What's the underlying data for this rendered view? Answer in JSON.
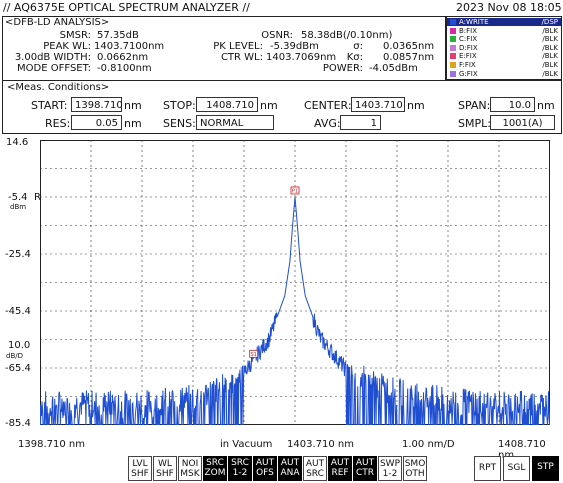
{
  "header": {
    "title": "// AQ6375E OPTICAL SPECTRUM ANALYZER //",
    "datetime": "2023 Nov 08 18:05"
  },
  "analysis": {
    "tab_label": "<DFB-LD ANALYSIS>",
    "smsr_label": "SMSR:",
    "smsr_value": "57.35dB",
    "peak_wl_label": "PEAK WL:",
    "peak_wl_value": "1403.7100nm",
    "width_label": "3.00dB WIDTH:",
    "width_value": "0.0662nm",
    "mode_offset_label": "MODE OFFSET:",
    "mode_offset_value": "-0.8100nm",
    "osnr_label": "OSNR:",
    "osnr_value": "58.38dB(/0.10nm)",
    "pk_level_label": "PK LEVEL:",
    "pk_level_value": "-5.39dBm",
    "ctr_wl_label": "CTR WL:",
    "ctr_wl_value": "1403.7069nm",
    "sigma_label": "σ:",
    "sigma_value": "0.0365nm",
    "ksigma_label": "Kσ:",
    "ksigma_value": "0.0857nm",
    "power_label": "POWER:",
    "power_value": "-4.05dBm"
  },
  "traces": [
    {
      "name": "A:WRITE",
      "mode": "/DSP",
      "color": "#1f4fd0"
    },
    {
      "name": "B:FIX",
      "mode": "/BLK",
      "color": "#d62aa6"
    },
    {
      "name": "C:FIX",
      "mode": "/BLK",
      "color": "#27b33a"
    },
    {
      "name": "D:FIX",
      "mode": "/BLK",
      "color": "#c27ad6"
    },
    {
      "name": "E:FIX",
      "mode": "/BLK",
      "color": "#e04070"
    },
    {
      "name": "F:FIX",
      "mode": "/BLK",
      "color": "#e0a020"
    },
    {
      "name": "G:FIX",
      "mode": "/BLK",
      "color": "#a070e0"
    }
  ],
  "conditions": {
    "tab_label": "<Meas. Conditions>",
    "start_label": "START:",
    "start_value": "1398.710",
    "start_unit": "nm",
    "stop_label": "STOP:",
    "stop_value": "1408.710",
    "stop_unit": "nm",
    "center_label": "CENTER:",
    "center_value": "1403.710",
    "center_unit": "nm",
    "span_label": "SPAN:",
    "span_value": "10.0",
    "span_unit": "nm",
    "res_label": "RES:",
    "res_value": "0.05",
    "res_unit": "nm",
    "sens_label": "SENS:",
    "sens_value": "NORMAL",
    "avg_label": "AVG:",
    "avg_value": "1",
    "smpl_label": "SMPL:",
    "smpl_value": "1001(A)"
  },
  "plot": {
    "y_ticks": [
      "14.6",
      "-5.4",
      "-25.4",
      "-45.4",
      "-65.4",
      "-85.4"
    ],
    "ref_label": "REF",
    "y_unit_top": "dBm",
    "scale_value": "10.0",
    "scale_unit": "dB/D",
    "x_start": "1398.710 nm",
    "x_center": "1403.710 nm",
    "x_stop": "1408.710 nm",
    "vacuum_label": "in Vacuum",
    "per_div": "1.00 nm/D",
    "marker_peak": "P1",
    "marker_side": "S1"
  },
  "chart_data": {
    "type": "line",
    "x_range": [
      1398.71,
      1408.71
    ],
    "y_range": [
      -85.4,
      14.6
    ],
    "peak": {
      "x": 1403.71,
      "y": -5.39
    },
    "side_mode": {
      "x": 1402.9,
      "y": -62.7
    },
    "noise_floor_approx": [
      -85.4,
      -70.0
    ],
    "x": [
      1398.71,
      1399.71,
      1400.71,
      1401.71,
      1402.21,
      1402.71,
      1403.21,
      1403.51,
      1403.61,
      1403.66,
      1403.71,
      1403.76,
      1403.81,
      1403.91,
      1404.21,
      1404.71,
      1405.21,
      1405.71,
      1406.71,
      1407.71,
      1408.71
    ],
    "y": [
      -78,
      -78,
      -78,
      -76,
      -73,
      -67,
      -55,
      -40,
      -28,
      -16,
      -5.39,
      -16,
      -28,
      -40,
      -55,
      -66,
      -71,
      -74,
      -77,
      -78,
      -78
    ]
  },
  "softkeys": [
    {
      "label": "LVL\nSHF",
      "active": false
    },
    {
      "label": "WL\nSHF",
      "active": false
    },
    {
      "label": "NOI\nMSK",
      "active": false
    },
    {
      "label": "SRC\nZOM",
      "active": true
    },
    {
      "label": "SRC\n1-2",
      "active": true
    },
    {
      "label": "AUT\nOFS",
      "active": true
    },
    {
      "label": "AUT\nANA",
      "active": true
    },
    {
      "label": "AUT\nSRC",
      "active": false
    },
    {
      "label": "AUT\nREF",
      "active": true
    },
    {
      "label": "AUT\nCTR",
      "active": true
    },
    {
      "label": "SWP\n1-2",
      "active": false
    },
    {
      "label": "SMO\nOTH",
      "active": false
    }
  ],
  "sweep_buttons": [
    {
      "label": "RPT",
      "active": false
    },
    {
      "label": "SGL",
      "active": false
    },
    {
      "label": "STP",
      "active": true
    }
  ]
}
